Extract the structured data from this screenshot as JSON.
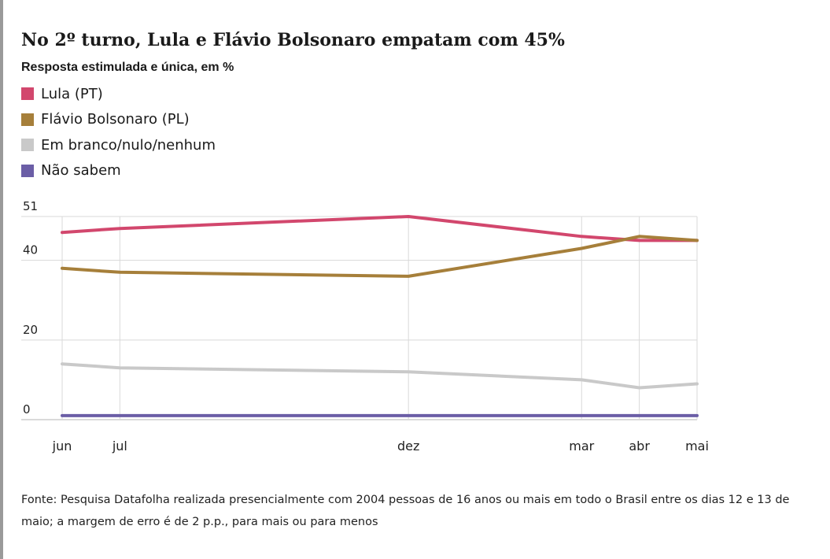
{
  "title": "No 2º turno, Lula e Flávio Bolsonaro empatam com 45%",
  "subtitle": "Resposta estimulada e única, em %",
  "source": "Fonte: Pesquisa Datafolha realizada presencialmente com 2004 pessoas de 16 anos ou mais em todo o Brasil entre os dias 12 e 13 de maio; a margem de erro é de 2 p.p., para mais ou para menos",
  "chart_data": {
    "type": "line",
    "title": "No 2º turno, Lula e Flávio Bolsonaro empatam com 45%",
    "subtitle": "Resposta estimulada e única, em %",
    "x": [
      "jun",
      "jul",
      "dez",
      "mar",
      "abr",
      "mai"
    ],
    "x_months_index": [
      0,
      1,
      6,
      9,
      10,
      11
    ],
    "ylim": [
      0,
      51
    ],
    "yticks": [
      0,
      20,
      40,
      51
    ],
    "grid": true,
    "legend_position": "top-left",
    "series": [
      {
        "name": "Lula (PT)",
        "color": "#d2476d",
        "values": [
          47,
          48,
          51,
          46,
          45,
          45
        ]
      },
      {
        "name": "Flávio Bolsonaro (PL)",
        "color": "#a67f3a",
        "values": [
          38,
          37,
          36,
          43,
          46,
          45
        ]
      },
      {
        "name": "Em branco/nulo/nenhum",
        "color": "#c9c9c9",
        "values": [
          14,
          13,
          12,
          10,
          8,
          9
        ]
      },
      {
        "name": "Não sabem",
        "color": "#6b5ea6",
        "values": [
          1,
          1,
          1,
          1,
          1,
          1
        ]
      }
    ]
  }
}
